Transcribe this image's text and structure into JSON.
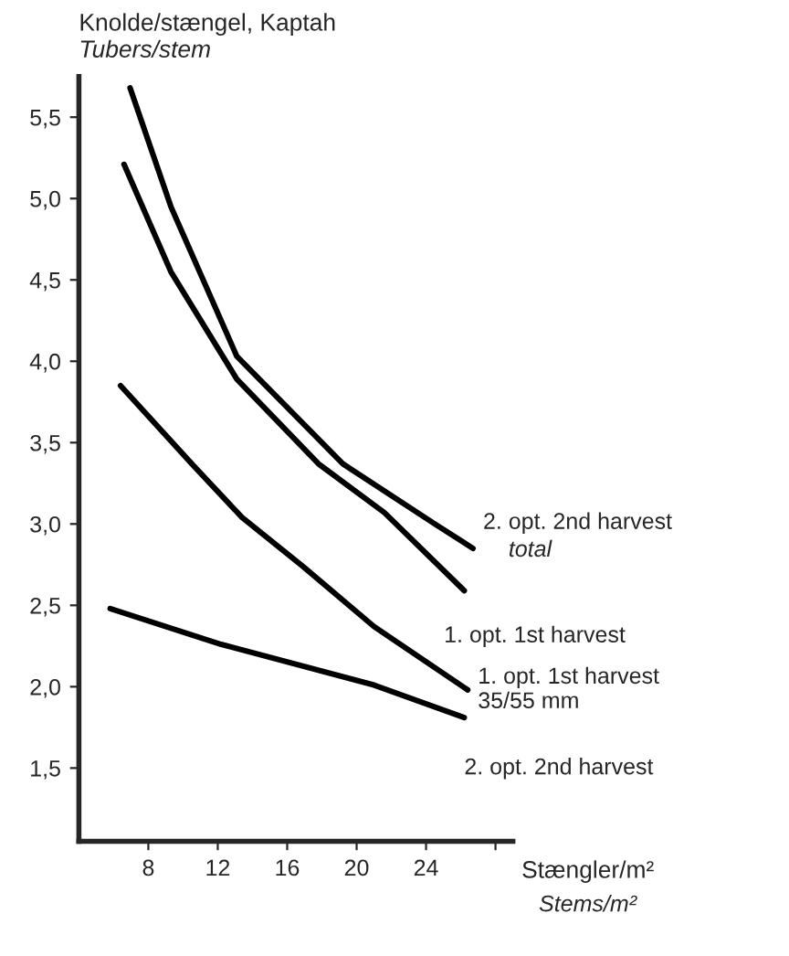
{
  "chart_data": {
    "type": "line",
    "title": "Knolde/stængel, Kaptah",
    "subtitle": "Tubers/stem",
    "xlabel": "Stængler/m²",
    "annotations": [
      "total",
      "Stems/m²"
    ],
    "xlim": [
      4,
      29
    ],
    "ylim": [
      1.05,
      5.75
    ],
    "xticks": [
      8,
      12,
      16,
      20,
      24,
      {
        "value": 28,
        "label": null
      }
    ],
    "yticks": [
      {
        "value": 1.5,
        "label": "1,5"
      },
      {
        "value": 2.0,
        "label": "2,0"
      },
      {
        "value": 2.5,
        "label": "2,5"
      },
      {
        "value": 3.0,
        "label": "3,0"
      },
      {
        "value": 3.5,
        "label": "3,5"
      },
      {
        "value": 4.0,
        "label": "4,0"
      },
      {
        "value": 4.5,
        "label": "4,5"
      },
      {
        "value": 5.0,
        "label": "5,0"
      },
      {
        "value": 5.5,
        "label": "5,5"
      }
    ],
    "grid": false,
    "legend": false,
    "marker": "none",
    "line_style": "solid",
    "series": [
      {
        "name": "2. opt. 2nd harvest",
        "color": "#000000",
        "x": [
          6.95,
          9.3,
          13.1,
          19.2,
          24.5,
          26.7
        ],
        "values": [
          5.68,
          4.95,
          4.03,
          3.37,
          3.0,
          2.85
        ]
      },
      {
        "name": "1. opt. 1st harvest",
        "color": "#000000",
        "x": [
          6.6,
          9.3,
          13.1,
          17.8,
          21.6,
          26.2
        ],
        "values": [
          5.21,
          4.55,
          3.89,
          3.37,
          3.07,
          2.59
        ]
      },
      {
        "name": "1. opt. 1st harvest\n35/55 mm",
        "color": "#000000",
        "x": [
          6.4,
          10.5,
          13.4,
          16.9,
          21.0,
          26.4
        ],
        "values": [
          3.85,
          3.37,
          3.04,
          2.74,
          2.37,
          1.98
        ]
      },
      {
        "name": "2. opt. 2nd harvest",
        "color": "#000000",
        "x": [
          5.8,
          12.2,
          21.0,
          26.2
        ],
        "values": [
          2.48,
          2.26,
          2.01,
          1.81
        ]
      }
    ]
  }
}
